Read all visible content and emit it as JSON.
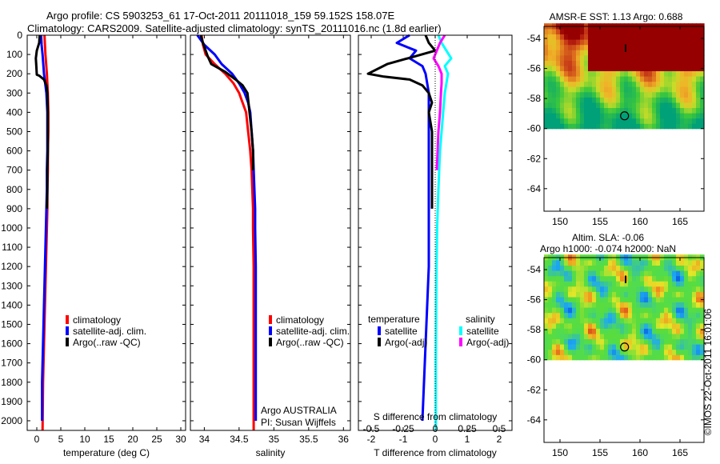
{
  "header": {
    "line1": "Argo profile: CS 5903253_61 17-Oct-2011 20111018_159 59.152S 158.07E",
    "line2": "Climatology: CARS2009. Satellite-adjusted climatology: synTS_20111016.nc (1.8d earlier)"
  },
  "credit": {
    "watermark": "©IMOS 22-Oct-2011 16:01:06",
    "argo": "Argo AUSTRALIA",
    "pi": "PI: Susan Wijffels"
  },
  "colors": {
    "climatology": "#ff0000",
    "satellite": "#0000ff",
    "argo": "#000000",
    "satellite_salt": "#00ffff",
    "argo_salt": "#ff00ff"
  },
  "chart_data": [
    {
      "type": "line",
      "xlabel": "temperature (deg C)",
      "ylabel": "",
      "xlim": [
        -2,
        31
      ],
      "ylim": [
        2050,
        0
      ],
      "xticks": [
        0,
        5,
        10,
        15,
        20,
        25,
        30
      ],
      "yticks": [
        0,
        100,
        200,
        300,
        400,
        500,
        600,
        700,
        800,
        900,
        1000,
        1100,
        1200,
        1300,
        1400,
        1500,
        1600,
        1700,
        1800,
        1900,
        2000
      ],
      "legend": [
        "climatology",
        "satellite-adj. clim.",
        "Argo(..raw -QC)"
      ],
      "series": [
        {
          "name": "climatology",
          "color": "#ff0000",
          "x": [
            1.6,
            1.7,
            1.8,
            2.1,
            2.3,
            2.4,
            2.4,
            2.3,
            2.3,
            2.2,
            2.2,
            2.1,
            2.0,
            1.9,
            1.8,
            1.7,
            1.6,
            1.5,
            1.4,
            1.3,
            1.2
          ],
          "y": [
            0,
            50,
            100,
            200,
            300,
            400,
            500,
            600,
            700,
            800,
            900,
            1000,
            1100,
            1200,
            1300,
            1400,
            1500,
            1600,
            1700,
            1800,
            2050
          ]
        },
        {
          "name": "satellite-adj. clim.",
          "color": "#0000ff",
          "x": [
            0.9,
            1.0,
            1.2,
            1.5,
            2.0,
            2.2,
            2.2,
            2.2,
            2.1,
            2.1,
            2.0,
            1.9,
            1.8,
            1.7,
            1.6,
            1.5,
            1.4,
            1.3,
            1.2,
            1.1,
            1.1
          ],
          "y": [
            0,
            50,
            100,
            200,
            300,
            400,
            500,
            600,
            700,
            800,
            900,
            1000,
            1100,
            1200,
            1300,
            1400,
            1500,
            1600,
            1700,
            1800,
            2000
          ]
        },
        {
          "name": "Argo(..raw -QC)",
          "color": "#000000",
          "x": [
            0.6,
            0.5,
            0.0,
            -0.2,
            -0.1,
            0.0,
            0.5,
            1.5,
            2.0,
            2.2,
            2.3,
            2.3,
            2.3,
            2.2,
            2.2,
            2.1
          ],
          "y": [
            0,
            40,
            80,
            120,
            160,
            205,
            210,
            230,
            260,
            300,
            400,
            500,
            600,
            700,
            800,
            900
          ]
        }
      ]
    },
    {
      "type": "line",
      "xlabel": "salinity",
      "ylabel": "",
      "xlim": [
        33.8,
        36.1
      ],
      "ylim": [
        2050,
        0
      ],
      "xticks": [
        34,
        34.5,
        35,
        35.5,
        36
      ],
      "legend": [
        "climatology",
        "satellite-adj. clim.",
        "Argo(..raw -QC)"
      ],
      "series": [
        {
          "name": "climatology",
          "color": "#ff0000",
          "x": [
            33.96,
            33.98,
            34.02,
            34.15,
            34.3,
            34.42,
            34.5,
            34.55,
            34.6,
            34.63,
            34.66,
            34.68,
            34.69,
            34.7,
            34.7,
            34.71,
            34.71,
            34.71,
            34.71,
            34.71
          ],
          "y": [
            0,
            50,
            100,
            150,
            200,
            250,
            300,
            350,
            400,
            500,
            600,
            700,
            800,
            900,
            1000,
            1200,
            1400,
            1600,
            1800,
            2050
          ]
        },
        {
          "name": "satellite-adj. clim.",
          "color": "#0000ff",
          "x": [
            33.9,
            34.0,
            34.15,
            34.25,
            34.4,
            34.5,
            34.58,
            34.63,
            34.66,
            34.68,
            34.7,
            34.71,
            34.72,
            34.73,
            34.73,
            34.74,
            34.74,
            34.74,
            34.74,
            34.74
          ],
          "y": [
            0,
            50,
            100,
            150,
            200,
            250,
            300,
            350,
            400,
            500,
            600,
            700,
            800,
            900,
            1000,
            1200,
            1400,
            1600,
            1800,
            2000
          ]
        },
        {
          "name": "Argo(..raw -QC)",
          "color": "#000000",
          "x": [
            33.95,
            33.98,
            34.02,
            34.05,
            34.1,
            34.3,
            34.45,
            34.55,
            34.62,
            34.65,
            34.68,
            34.7,
            34.7
          ],
          "y": [
            0,
            40,
            80,
            110,
            150,
            190,
            230,
            260,
            300,
            400,
            500,
            600,
            700
          ]
        }
      ]
    },
    {
      "type": "line",
      "xlabel": "T difference from climatology",
      "title_top": "S difference from climatology",
      "xlim": [
        -2.4,
        2.4
      ],
      "ylim": [
        2050,
        0
      ],
      "xticks": [
        -2,
        -1,
        0,
        1,
        2
      ],
      "top_ticks": [
        -0.5,
        -0.25,
        0,
        0.25,
        0.5
      ],
      "legend_titles": [
        "temperature",
        "salinity"
      ],
      "legend_temperature": [
        "satellite",
        "Argo(-adj)"
      ],
      "legend_salinity": [
        "satellite",
        "Argo(-adj)"
      ],
      "series": [
        {
          "name": "temperature satellite",
          "color": "#0000ff",
          "x": [
            -0.8,
            -1.2,
            -0.6,
            -0.8,
            -0.4,
            -0.3,
            -0.2,
            -0.2,
            -0.2,
            -0.2,
            -0.2,
            -0.2,
            -0.25,
            -0.3,
            -0.35,
            -0.4
          ],
          "y": [
            0,
            40,
            80,
            120,
            160,
            200,
            300,
            400,
            600,
            800,
            1000,
            1200,
            1400,
            1600,
            1800,
            2000
          ]
        },
        {
          "name": "temperature Argo(-adj)",
          "color": "#000000",
          "x": [
            -0.3,
            -0.2,
            0.0,
            -1.5,
            -2.1,
            -1.6,
            -0.8,
            -0.4,
            -0.2,
            -0.1,
            -0.2,
            -0.1,
            -0.1,
            -0.1,
            -0.1
          ],
          "y": [
            0,
            40,
            80,
            150,
            200,
            215,
            230,
            260,
            300,
            350,
            400,
            500,
            600,
            700,
            900
          ]
        },
        {
          "name": "salinity satellite",
          "color": "#00ffff",
          "x": [
            0.1,
            0.2,
            0.35,
            0.5,
            0.3,
            0.4,
            0.3,
            0.25,
            0.2,
            0.15,
            0.1,
            0.06,
            0.04,
            0.03,
            0.02,
            0.02
          ],
          "y": [
            0,
            40,
            80,
            120,
            160,
            200,
            300,
            400,
            500,
            600,
            800,
            1000,
            1200,
            1400,
            1700,
            2050
          ]
        },
        {
          "name": "salinity Argo(-adj)",
          "color": "#ff00ff",
          "x": [
            0.3,
            0.15,
            0.05,
            -0.05,
            0.1,
            0.2,
            0.2,
            0.18,
            0.15,
            0.1,
            0.05
          ],
          "y": [
            0,
            40,
            80,
            120,
            160,
            200,
            250,
            300,
            400,
            500,
            700
          ]
        }
      ]
    },
    {
      "type": "heatmap",
      "title": "AMSR-E SST: 1.13 Argo: 0.688",
      "xlim": [
        148,
        168
      ],
      "ylim": [
        -65.5,
        -53.2
      ],
      "xticks": [
        150,
        155,
        160,
        165
      ],
      "yticks": [
        -54,
        -56,
        -58,
        -60,
        -62,
        -64
      ],
      "marker": {
        "lon": 158.07,
        "lat": -59.152
      }
    },
    {
      "type": "heatmap",
      "title_line1": "Altim. SLA: -0.06",
      "title_line2": "Argo h1000: -0.074 h2000: NaN",
      "xlim": [
        148,
        168
      ],
      "ylim": [
        -65.5,
        -53.2
      ],
      "xticks": [
        150,
        155,
        160,
        165
      ],
      "yticks": [
        -54,
        -56,
        -58,
        -60,
        -62,
        -64
      ],
      "marker": {
        "lon": 158.07,
        "lat": -59.152
      }
    }
  ]
}
